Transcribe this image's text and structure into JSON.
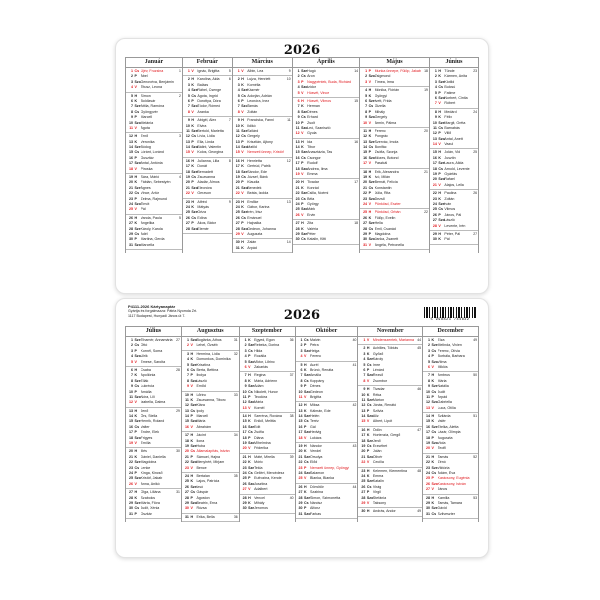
{
  "year": "2026",
  "publisher": {
    "line1": "P4111-2026 Kártyanaptár",
    "line2": "Gyártja és forgalmazza: Pátria Nyomda Zrt.",
    "line3": "1117 Budapest, Hunyadi János út 7."
  },
  "barcode": "5 998823 744832",
  "weekdays": [
    "H",
    "K",
    "Sze",
    "Cs",
    "P",
    "Szo",
    "V"
  ],
  "colors": {
    "red": "#e0161b",
    "text": "#222222"
  },
  "red_days": [
    "1-1",
    "3-15",
    "4-3",
    "4-5",
    "4-6",
    "5-1",
    "5-24",
    "5-25",
    "8-20",
    "10-23",
    "11-1",
    "12-25",
    "12-26"
  ],
  "months": [
    {
      "name": "Január",
      "names": [
        "Újév, Fruzsina",
        "Ábel",
        "Genovéva, Benjámin",
        "Titusz, Leona",
        "Simon",
        "Boldizsár",
        "Attila, Ramóna",
        "Gyöngyvér",
        "Marcell",
        "Melánia",
        "Ágota",
        "Ernő",
        "Veronika",
        "Bódog",
        "Lóránt, Loránd",
        "Gusztáv",
        "Antal, Antónia",
        "Piroska",
        "Sára, Márió",
        "Fábián, Sebestyén",
        "Ágnes",
        "Vince, Artúr",
        "Zelma, Rajmund",
        "Timót",
        "Pál",
        "Vanda, Paula",
        "Angelika",
        "Károly, Karola",
        "Adél",
        "Martina, Gerda",
        "Marcella"
      ]
    },
    {
      "name": "Február",
      "names": [
        "Ignác, Brigitta",
        "Karolina, Aida",
        "Balázs",
        "Ráhel, Csenge",
        "Ágota, Ingrid",
        "Dorottya, Dóra",
        "Tódor, Rómeó",
        "Aranka",
        "Abigél, Alex",
        "Elvira",
        "Bertold, Marietta",
        "Lívia, Lídia",
        "Ella, Linda",
        "Bálint, Valentin",
        "Kolos, Georgina",
        "Julianna, Lilla",
        "Donát",
        "Bernadett",
        "Zsuzsanna",
        "Aladár, Álmos",
        "Eleonóra",
        "Gerzson",
        "Alfréd",
        "Mátyás",
        "Géza",
        "Edina",
        "Ákos, Bátor",
        "Elemér"
      ]
    },
    {
      "name": "Március",
      "names": [
        "Albin, Lea",
        "Lujza, Henriett",
        "Kornélia",
        "Kázmér",
        "Adorján, Adrián",
        "Leonóra, Inez",
        "Tamás",
        "Zoltán",
        "Franciska, Fanni",
        "Ildikó",
        "Szilárd",
        "Gergely",
        "Krisztián, Ajtony",
        "Matild",
        "Nemzeti ünnep, Kristóf",
        "Henrietta",
        "Gertrúd, Patrik",
        "Sándor, Ede",
        "József, Bánk",
        "Klaudia",
        "Benedek",
        "Beáta, Izolda",
        "Emőke",
        "Gábor, Karina",
        "Irén, Írisz",
        "Emánuel",
        "Hajnalka",
        "Gedeon, Johanna",
        "Auguszta",
        "Zalán",
        "Árpád"
      ]
    },
    {
      "name": "Április",
      "names": [
        "Hugó",
        "Áron",
        "Nagypéntek, Buda, Richárd",
        "Izidor",
        "Húsvét, Vince",
        "Húsvét, Vilmos",
        "Herman",
        "Dénes",
        "Erhard",
        "Zsolt",
        "Leó, Szaniszló",
        "Gyula",
        "Ida",
        "Tibor",
        "Anasztázia, Tas",
        "Csongor",
        "Rudolf",
        "Andrea, Ilma",
        "Emma",
        "Tivadar",
        "Konrád",
        "Csilla, Noémi",
        "Béla",
        "György",
        "Márk",
        "Ervin",
        "Zita",
        "Valéria",
        "Péter",
        "Katalin, Kitti"
      ]
    },
    {
      "name": "Május",
      "names": [
        "Munka ünnepe, Fülöp, Jakab",
        "Zsigmond",
        "Tímea, Irma",
        "Mónika, Flórián",
        "Györgyi",
        "Ivett, Frida",
        "Gizella",
        "Mihály",
        "Gergely",
        "Ármin, Pálma",
        "Ferenc",
        "Pongrác",
        "Szervác, Imola",
        "Bonifác",
        "Zsófia, Szonja",
        "Mózes, Botond",
        "Paszkál",
        "Erik, Alexandra",
        "Ivó, Milán",
        "Bernát, Felícia",
        "Konstantin",
        "Júlia, Rita",
        "Dezső",
        "Pünkösd, Eszter",
        "Pünkösd, Orbán",
        "Fülöp, Evelin",
        "Hella",
        "Emil, Csanád",
        "Magdolna",
        "Janka, Zsanett",
        "Angéla, Petronella"
      ]
    },
    {
      "name": "Június",
      "names": [
        "Tünde",
        "Kármen, Anita",
        "Klotild",
        "Bulcsú",
        "Fatime",
        "Norbert, Cintia",
        "Róbert",
        "Medárd",
        "Félix",
        "Margit, Gréta",
        "Barnabás",
        "Villő",
        "Antal, Anett",
        "Vazul",
        "Jolán, Vid",
        "Jusztin",
        "Laura, Alida",
        "Arnold, Levente",
        "Gyárfás",
        "Rafael",
        "Alajos, Leila",
        "Paulina",
        "Zoltán",
        "Iván",
        "Vilmos",
        "János, Pál",
        "László",
        "Levente, Irén",
        "Péter, Pál",
        "Pál"
      ]
    },
    {
      "name": "Július",
      "names": [
        "Tihamér, Annamária",
        "Ottó",
        "Kornél, Soma",
        "Ulrik",
        "Emese, Sarolta",
        "Csaba",
        "Apollónia",
        "Ellák",
        "Lukrécia",
        "Amália",
        "Nóra, Lili",
        "Izabella, Dalma",
        "Jenő",
        "Örs, Stella",
        "Henrik, Roland",
        "Valter",
        "Endre, Elek",
        "Frigyes",
        "Emília",
        "Illés",
        "Dániel, Daniella",
        "Magdolna",
        "Lenke",
        "Kinga, Kincső",
        "Kristóf, Jakab",
        "Anna, Anikó",
        "Olga, Liliána",
        "Szabolcs",
        "Márta, Flóra",
        "Judit, Xénia",
        "Oszkár"
      ]
    },
    {
      "name": "Augusztus",
      "names": [
        "Boglárka, Athos",
        "Lehel, Özséb",
        "Hermina, Lídia",
        "Domonkos, Dominika",
        "Krisztina",
        "Berta, Bettina",
        "Ibolya",
        "László",
        "Emőd",
        "Lőrinc",
        "Zsuzsanna, Tiborc",
        "Klára",
        "Ipoly",
        "Marcell",
        "Mária",
        "Ábrahám",
        "Jácint",
        "Ilona",
        "Huba",
        "Államalapítás, István",
        "Sámuel, Hajna",
        "Menyhért, Mirjam",
        "Bence",
        "Bertalan",
        "Lajos, Patrícia",
        "Izsó",
        "Gáspár",
        "Ágoston",
        "Beatrix, Erna",
        "Rózsa",
        "Erika, Bella"
      ]
    },
    {
      "name": "Szeptember",
      "names": [
        "Egyed, Egon",
        "Rebeka, Dorina",
        "Hilda",
        "Rozália",
        "Viktor, Lőrinc",
        "Zakariás",
        "Regina",
        "Mária, Adrienn",
        "Ádám",
        "Nikolett, Hunor",
        "Teodóra",
        "Mária",
        "Kornél",
        "Szeréna, Roxána",
        "Enikő, Melitta",
        "Edit",
        "Zsófia",
        "Diána",
        "Vilhelmina",
        "Friderika",
        "Máté, Mirella",
        "Móric",
        "Tekla",
        "Gellért, Mercédesz",
        "Eufrozina, Kende",
        "Jusztina",
        "Adalbert",
        "Vencel",
        "Mihály",
        "Jeromos"
      ]
    },
    {
      "name": "Október",
      "names": [
        "Malvin",
        "Petra",
        "Helga",
        "Ferenc",
        "Aurél",
        "Brúnó, Renáta",
        "Amália",
        "Koppány",
        "Dénes",
        "Gedeon",
        "Brigitta",
        "Miksa",
        "Kálmán, Ede",
        "Helén",
        "Teréz",
        "Gál",
        "Hedvig",
        "Lukács",
        "Nándor",
        "Vendel",
        "Orsolya",
        "Előd",
        "Nemzeti ünnep, Gyöngyi",
        "Salamon",
        "Blanka, Bianka",
        "Dömötör",
        "Szabina",
        "Simon, Szimonetta",
        "Nárcisz",
        "Alfonz",
        "Farkas"
      ]
    },
    {
      "name": "November",
      "names": [
        "Mindenszentek, Marianna",
        "Achilles, Tóbiás",
        "Győző",
        "Károly",
        "Imre",
        "Lénárd",
        "Rezső",
        "Zsombor",
        "Tivadar",
        "Réka",
        "Márton",
        "Jónás, Renátó",
        "Szilvia",
        "Aliz",
        "Albert, Lipót",
        "Ödön",
        "Hortenzia, Gergő",
        "Jenő",
        "Erzsébet",
        "Jolán",
        "Olivér",
        "Cecília",
        "Kelemen, Klementina",
        "Emma",
        "Katalin",
        "Virág",
        "Virgil",
        "Stefánia",
        "Taksony",
        "András, Andor"
      ]
    },
    {
      "name": "December",
      "names": [
        "Elza",
        "Melinda, Vivien",
        "Ferenc, Olívia",
        "Borbála, Barbara",
        "Vilma",
        "Miklós",
        "Ambrus",
        "Mária",
        "Natália",
        "Judit",
        "Árpád",
        "Gabriella",
        "Luca, Otília",
        "Szilárda",
        "Valér",
        "Etelka, Aletta",
        "Lázár, Olimpia",
        "Auguszta",
        "Viola",
        "Teofil",
        "Tamás",
        "Zénó",
        "Viktória",
        "Ádám, Éva",
        "Karácsony, Eugénia",
        "Karácsony, István",
        "János",
        "Kamilla",
        "Tamás, Tamara",
        "Dávid",
        "Szilveszter"
      ]
    }
  ]
}
